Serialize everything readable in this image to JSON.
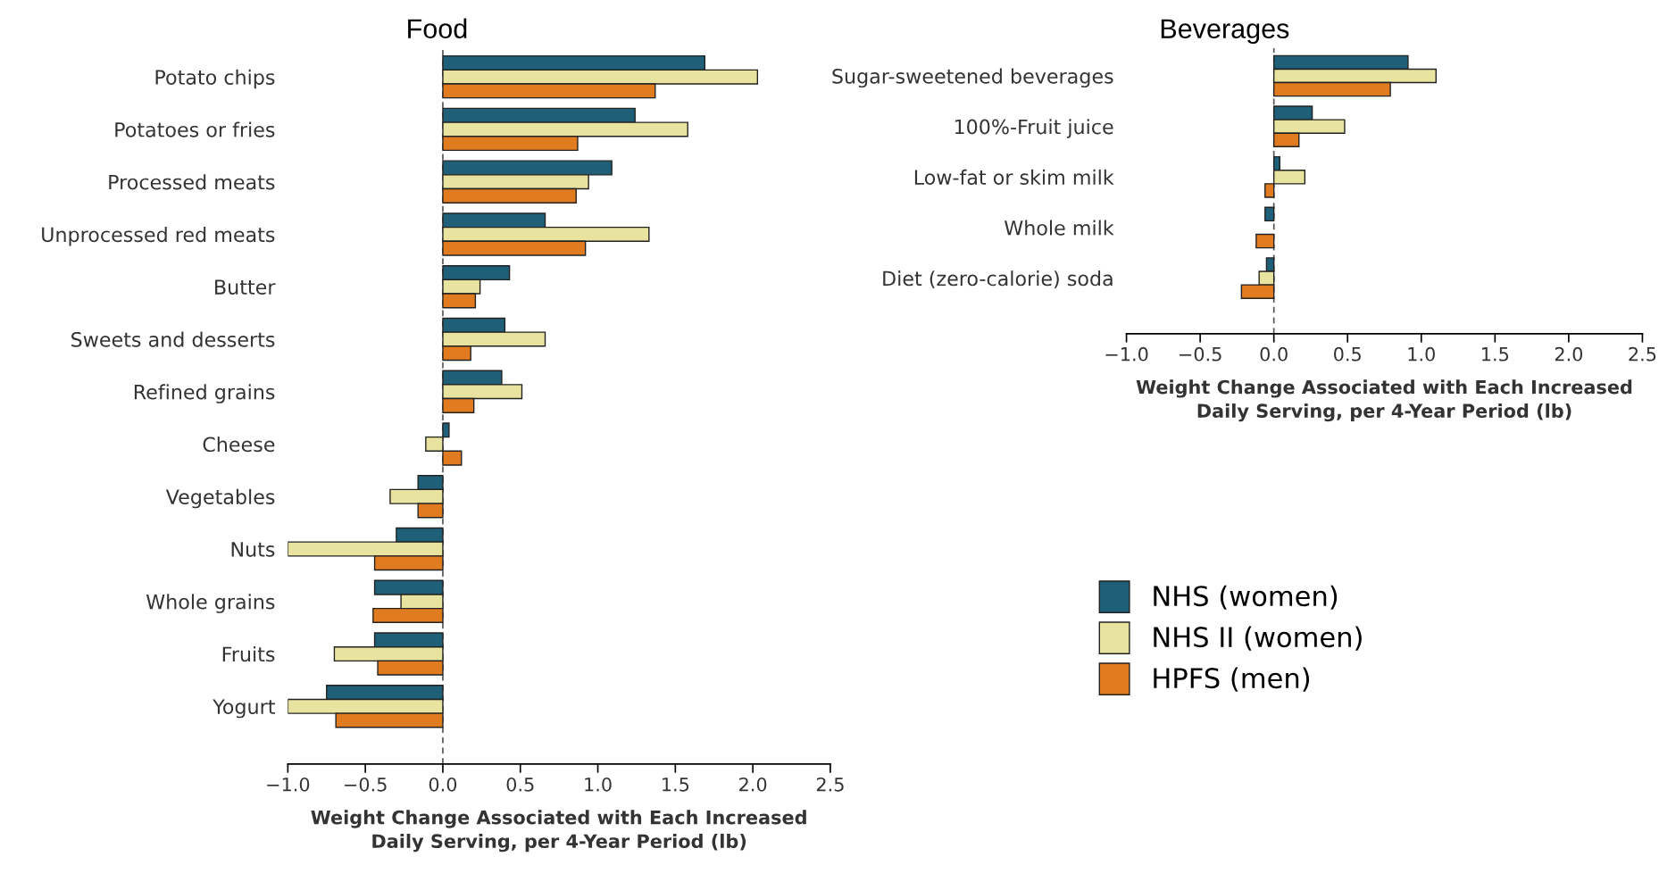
{
  "chart_data": [
    {
      "type": "bar",
      "orientation": "horizontal",
      "title": "Food",
      "xlabel": "Weight Change Associated with Each Increased\nDaily Serving, per 4-Year Period (lb)",
      "categories": [
        "Potato chips",
        "Potatoes or fries",
        "Processed meats",
        "Unprocessed red meats",
        "Butter",
        "Sweets and desserts",
        "Refined grains",
        "Cheese",
        "Vegetables",
        "Nuts",
        "Whole grains",
        "Fruits",
        "Yogurt"
      ],
      "series": [
        {
          "color": "#1f5f78",
          "values": [
            1.69,
            1.24,
            1.09,
            0.66,
            0.43,
            0.4,
            0.38,
            0.04,
            -0.16,
            -0.3,
            -0.44,
            -0.44,
            -0.75
          ]
        },
        {
          "color": "#e8e4a0",
          "values": [
            2.03,
            1.58,
            0.94,
            1.33,
            0.24,
            0.66,
            0.51,
            -0.11,
            -0.34,
            -1.0,
            -0.27,
            -0.7,
            -1.0
          ]
        },
        {
          "color": "#e07b20",
          "values": [
            1.37,
            0.87,
            0.86,
            0.92,
            0.21,
            0.18,
            0.2,
            0.12,
            -0.16,
            -0.44,
            -0.45,
            -0.42,
            -0.69
          ]
        }
      ],
      "xlim": [
        -1.0,
        2.5
      ],
      "xticks": [
        {
          "value": -1.0,
          "label": "−1.0"
        },
        {
          "value": -0.5,
          "label": "−0.5"
        },
        {
          "value": 0.0,
          "label": "0.0"
        },
        {
          "value": 0.5,
          "label": "0.5"
        },
        {
          "value": 1.0,
          "label": "1.0"
        },
        {
          "value": 1.5,
          "label": "1.5"
        },
        {
          "value": 2.0,
          "label": "2.0"
        },
        {
          "value": 2.5,
          "label": "2.5"
        }
      ],
      "ref_lines": [
        {
          "axis": "x",
          "value": 0,
          "color": "#555555",
          "line_style": "dashed"
        }
      ],
      "grid": false,
      "legend": false
    },
    {
      "type": "bar",
      "orientation": "horizontal",
      "title": "Beverages",
      "xlabel": "Weight Change Associated with Each Increased\nDaily Serving, per 4-Year Period (lb)",
      "categories": [
        "Sugar-sweetened beverages",
        "100%-Fruit juice",
        "Low-fat or skim milk",
        "Whole milk",
        "Diet (zero-calorie) soda"
      ],
      "series": [
        {
          "name": "NHS (women)",
          "color": "#1f5f78",
          "values": [
            0.91,
            0.26,
            0.04,
            -0.06,
            -0.05
          ]
        },
        {
          "name": "NHS II (women)",
          "color": "#e8e4a0",
          "values": [
            1.1,
            0.48,
            0.21,
            null,
            -0.1
          ]
        },
        {
          "name": "HPFS (men)",
          "color": "#e07b20",
          "values": [
            0.79,
            0.17,
            -0.06,
            -0.12,
            -0.22
          ]
        }
      ],
      "xlim": [
        -1.0,
        2.5
      ],
      "xticks": [
        {
          "value": -1.0,
          "label": "−1.0"
        },
        {
          "value": -0.5,
          "label": "−0.5"
        },
        {
          "value": 0.0,
          "label": "0.0"
        },
        {
          "value": 0.5,
          "label": "0.5"
        },
        {
          "value": 1.0,
          "label": "1.0"
        },
        {
          "value": 1.5,
          "label": "1.5"
        },
        {
          "value": 2.0,
          "label": "2.0"
        },
        {
          "value": 2.5,
          "label": "2.5"
        }
      ],
      "ref_lines": [
        {
          "axis": "x",
          "value": 0,
          "color": "#555555",
          "line_style": "dashed"
        }
      ],
      "grid": false,
      "legend": "bottom"
    }
  ]
}
